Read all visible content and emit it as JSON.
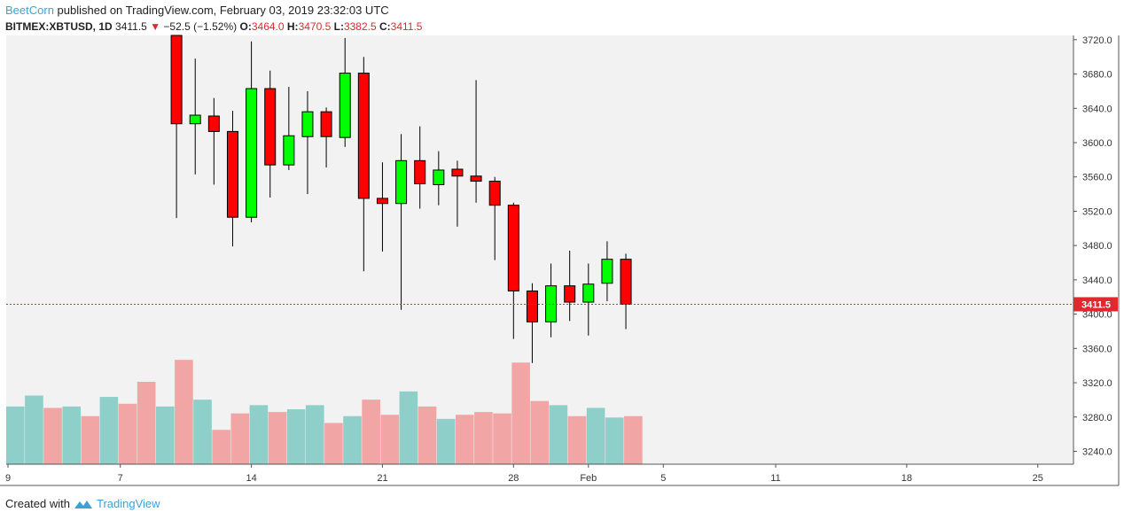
{
  "header": {
    "author": "BeetCorn",
    "published": "published on TradingView.com, February 03, 2019 23:32:03 UTC",
    "symbol": "BITMEX:XBTUSD, 1D",
    "last": "3411.5",
    "change": "−52.5 (−1.52%)",
    "o_label": "O:",
    "o_value": "3464.0",
    "h_label": "H:",
    "h_value": "3470.5",
    "l_label": "L:",
    "l_value": "3382.5",
    "c_label": "C:",
    "c_value": "3411.5"
  },
  "footer": {
    "created_with": "Created with",
    "brand": "TradingView"
  },
  "colors": {
    "up": "#00ff00",
    "down": "#ff0000",
    "wick": "#000000",
    "vol_up": "#8ecfc9",
    "vol_down": "#f2a5a5",
    "last_price": "#e0282e",
    "plot_bg": "#f2f2f2"
  },
  "chart_data": {
    "type": "candlestick",
    "price_axis": {
      "ticks": [
        "3720.0",
        "3680.0",
        "3640.0",
        "3600.0",
        "3560.0",
        "3520.0",
        "3480.0",
        "3440.0",
        "3400.0",
        "3360.0",
        "3320.0",
        "3280.0",
        "3240.0"
      ],
      "range": [
        3225,
        3725
      ]
    },
    "time_axis": {
      "ticks": [
        {
          "label": "9",
          "day": 0
        },
        {
          "label": "7",
          "day": 6
        },
        {
          "label": "14",
          "day": 13
        },
        {
          "label": "21",
          "day": 20
        },
        {
          "label": "28",
          "day": 27
        },
        {
          "label": "Feb",
          "day": 31
        },
        {
          "label": "5",
          "day": 35
        },
        {
          "label": "11",
          "day": 41
        },
        {
          "label": "18",
          "day": 48
        },
        {
          "label": "25",
          "day": 55
        }
      ],
      "range": [
        0,
        57
      ]
    },
    "last_price": "3411.5",
    "candles": [
      {
        "day": 9,
        "o": 3725,
        "h": 3725,
        "l": 3512,
        "c": 3622
      },
      {
        "day": 10,
        "o": 3622,
        "h": 3698,
        "l": 3563,
        "c": 3632
      },
      {
        "day": 11,
        "o": 3631,
        "h": 3652,
        "l": 3551,
        "c": 3613
      },
      {
        "day": 12,
        "o": 3613,
        "h": 3637,
        "l": 3479,
        "c": 3513
      },
      {
        "day": 13,
        "o": 3513,
        "h": 3718,
        "l": 3507,
        "c": 3663
      },
      {
        "day": 14,
        "o": 3663,
        "h": 3684,
        "l": 3536,
        "c": 3574
      },
      {
        "day": 15,
        "o": 3574,
        "h": 3665,
        "l": 3568,
        "c": 3608
      },
      {
        "day": 16,
        "o": 3607,
        "h": 3660,
        "l": 3540,
        "c": 3636
      },
      {
        "day": 17,
        "o": 3636,
        "h": 3641,
        "l": 3571,
        "c": 3607
      },
      {
        "day": 18,
        "o": 3606,
        "h": 3722,
        "l": 3595,
        "c": 3681
      },
      {
        "day": 19,
        "o": 3681,
        "h": 3700,
        "l": 3450,
        "c": 3535
      },
      {
        "day": 20,
        "o": 3535,
        "h": 3577,
        "l": 3473,
        "c": 3529
      },
      {
        "day": 21,
        "o": 3529,
        "h": 3610,
        "l": 3405,
        "c": 3579
      },
      {
        "day": 22,
        "o": 3579,
        "h": 3619,
        "l": 3523,
        "c": 3552
      },
      {
        "day": 23,
        "o": 3551,
        "h": 3590,
        "l": 3527,
        "c": 3568
      },
      {
        "day": 24,
        "o": 3569,
        "h": 3579,
        "l": 3502,
        "c": 3561
      },
      {
        "day": 25,
        "o": 3561,
        "h": 3673,
        "l": 3530,
        "c": 3555
      },
      {
        "day": 26,
        "o": 3555,
        "h": 3560,
        "l": 3463,
        "c": 3527
      },
      {
        "day": 27,
        "o": 3527,
        "h": 3530,
        "l": 3371,
        "c": 3427
      },
      {
        "day": 28,
        "o": 3427,
        "h": 3436,
        "l": 3343,
        "c": 3391
      },
      {
        "day": 29,
        "o": 3391,
        "h": 3459,
        "l": 3373,
        "c": 3433
      },
      {
        "day": 30,
        "o": 3433,
        "h": 3474,
        "l": 3392,
        "c": 3414
      },
      {
        "day": 31,
        "o": 3414,
        "h": 3459,
        "l": 3375,
        "c": 3435
      },
      {
        "day": 32,
        "o": 3436,
        "h": 3485,
        "l": 3415,
        "c": 3464
      },
      {
        "day": 33,
        "o": 3464,
        "h": 3470.5,
        "l": 3382.5,
        "c": 3411.5
      }
    ],
    "volume": [
      {
        "day": 0,
        "v": 0.42,
        "dir": "up"
      },
      {
        "day": 1,
        "v": 0.5,
        "dir": "up"
      },
      {
        "day": 2,
        "v": 0.41,
        "dir": "down"
      },
      {
        "day": 3,
        "v": 0.42,
        "dir": "up"
      },
      {
        "day": 4,
        "v": 0.35,
        "dir": "down"
      },
      {
        "day": 5,
        "v": 0.49,
        "dir": "up"
      },
      {
        "day": 6,
        "v": 0.44,
        "dir": "down"
      },
      {
        "day": 7,
        "v": 0.6,
        "dir": "down"
      },
      {
        "day": 8,
        "v": 0.42,
        "dir": "up"
      },
      {
        "day": 9,
        "v": 0.76,
        "dir": "down"
      },
      {
        "day": 10,
        "v": 0.47,
        "dir": "up"
      },
      {
        "day": 11,
        "v": 0.25,
        "dir": "down"
      },
      {
        "day": 12,
        "v": 0.37,
        "dir": "down"
      },
      {
        "day": 13,
        "v": 0.43,
        "dir": "up"
      },
      {
        "day": 14,
        "v": 0.38,
        "dir": "down"
      },
      {
        "day": 15,
        "v": 0.4,
        "dir": "up"
      },
      {
        "day": 16,
        "v": 0.43,
        "dir": "up"
      },
      {
        "day": 17,
        "v": 0.3,
        "dir": "down"
      },
      {
        "day": 18,
        "v": 0.35,
        "dir": "up"
      },
      {
        "day": 19,
        "v": 0.47,
        "dir": "down"
      },
      {
        "day": 20,
        "v": 0.36,
        "dir": "down"
      },
      {
        "day": 21,
        "v": 0.53,
        "dir": "up"
      },
      {
        "day": 22,
        "v": 0.42,
        "dir": "down"
      },
      {
        "day": 23,
        "v": 0.33,
        "dir": "up"
      },
      {
        "day": 24,
        "v": 0.36,
        "dir": "down"
      },
      {
        "day": 25,
        "v": 0.38,
        "dir": "down"
      },
      {
        "day": 26,
        "v": 0.37,
        "dir": "down"
      },
      {
        "day": 27,
        "v": 0.74,
        "dir": "down"
      },
      {
        "day": 28,
        "v": 0.46,
        "dir": "down"
      },
      {
        "day": 29,
        "v": 0.43,
        "dir": "up"
      },
      {
        "day": 30,
        "v": 0.35,
        "dir": "down"
      },
      {
        "day": 31,
        "v": 0.41,
        "dir": "up"
      },
      {
        "day": 32,
        "v": 0.34,
        "dir": "up"
      },
      {
        "day": 33,
        "v": 0.35,
        "dir": "down"
      }
    ]
  }
}
